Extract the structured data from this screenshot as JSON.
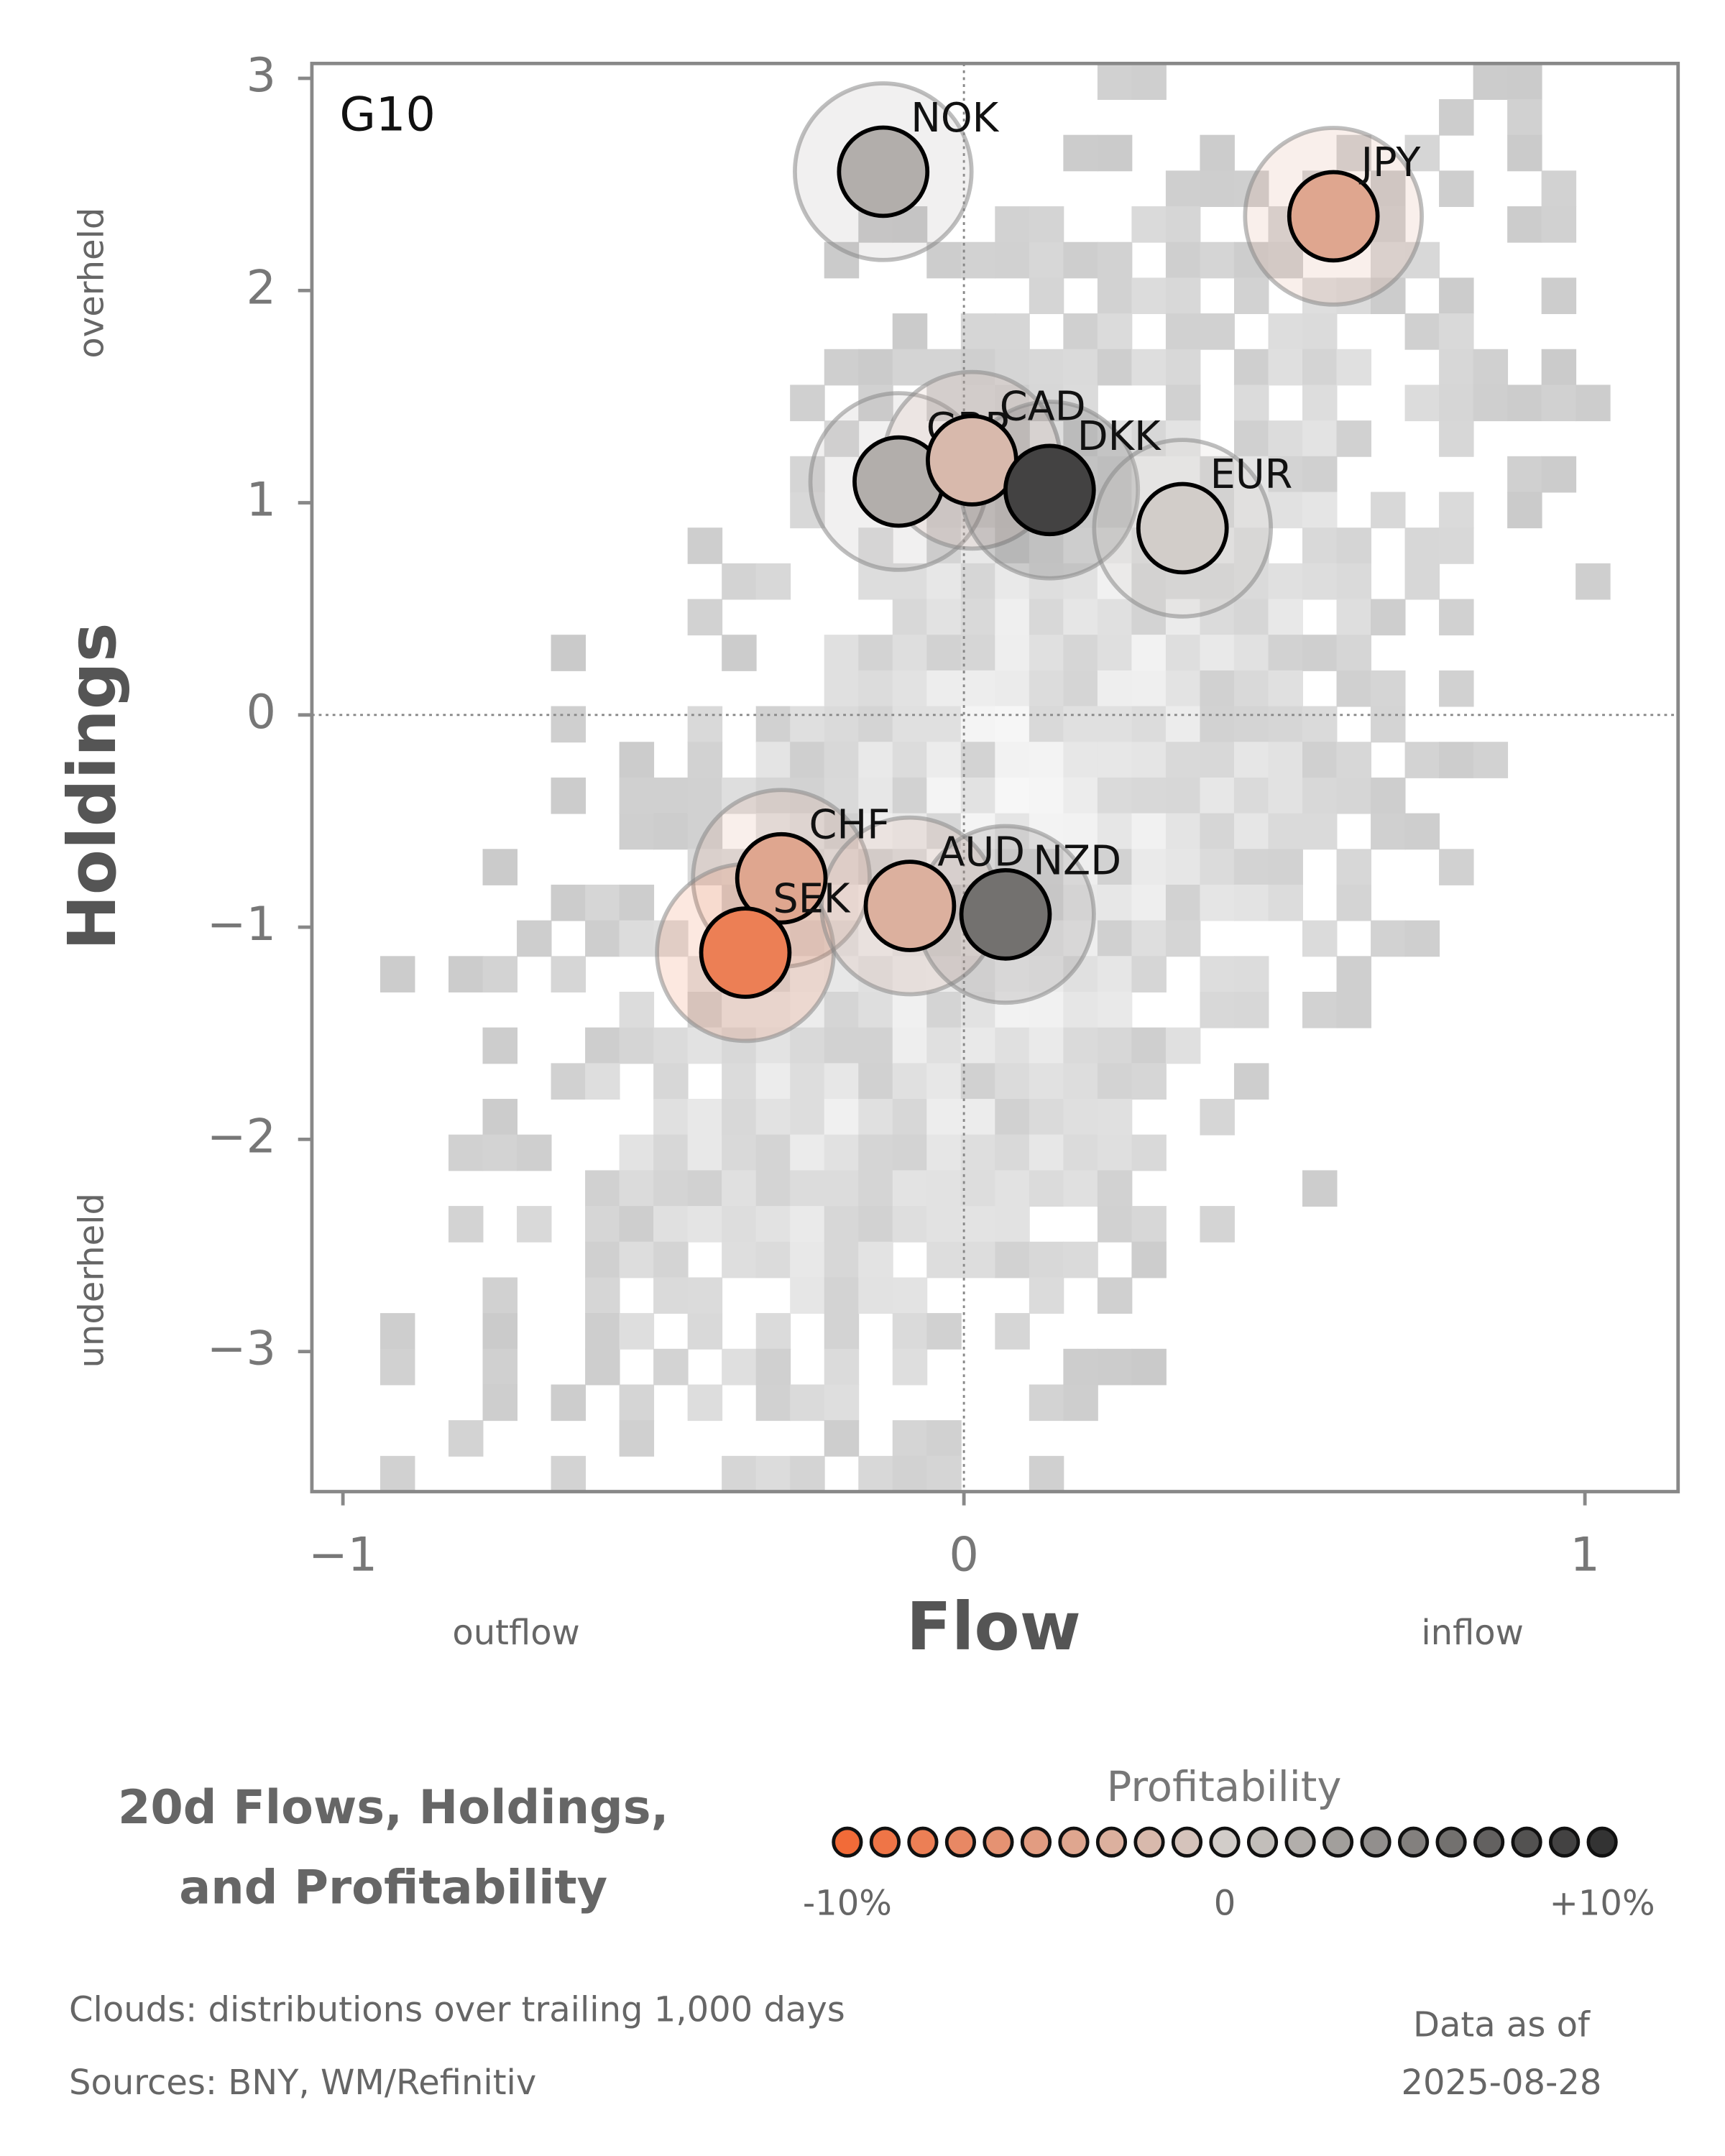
{
  "chart_data": {
    "type": "scatter",
    "panel_label": "G10",
    "x_label": "Flow",
    "y_label": "Holdings",
    "x_low_label": "outflow",
    "x_high_label": "inflow",
    "y_high_label": "overheld",
    "y_low_label": "underheld",
    "xlim": [
      -1.05,
      1.15
    ],
    "ylim": [
      -3.66,
      3.07
    ],
    "xticks": [
      {
        "value": -1,
        "label": "−1"
      },
      0,
      1
    ],
    "yticks": [
      {
        "value": -3,
        "label": "−3"
      },
      {
        "value": -2,
        "label": "−2"
      },
      {
        "value": -1,
        "label": "−1"
      },
      0,
      1,
      2,
      3
    ],
    "zero_lines": true,
    "points": [
      {
        "label": "NOK",
        "x": -0.13,
        "y": 2.56,
        "profitability": 2
      },
      {
        "label": "JPY",
        "x": 0.595,
        "y": 2.35,
        "profitability": -4
      },
      {
        "label": "GBP",
        "x": -0.105,
        "y": 1.1,
        "profitability": 2
      },
      {
        "label": "CAD",
        "x": 0.013,
        "y": 1.2,
        "profitability": -2
      },
      {
        "label": "DKK",
        "x": 0.138,
        "y": 1.06,
        "profitability": 9
      },
      {
        "label": "EUR",
        "x": 0.352,
        "y": 0.88,
        "profitability": 0
      },
      {
        "label": "CHF",
        "x": -0.294,
        "y": -0.77,
        "profitability": -4
      },
      {
        "label": "SEK",
        "x": -0.352,
        "y": -1.12,
        "profitability": -8
      },
      {
        "label": "AUD",
        "x": -0.087,
        "y": -0.9,
        "profitability": -3
      },
      {
        "label": "NZD",
        "x": 0.067,
        "y": -0.94,
        "profitability": 6
      }
    ],
    "title": [
      "20d Flows, Holdings,",
      "and Profitability"
    ],
    "colorbar": {
      "title": "Profitability",
      "clim": [
        -10,
        10
      ],
      "colors": [
        "#f26b38",
        "#d2cdc9",
        "#333333"
      ],
      "ticks": [
        {
          "value": -10,
          "label": "-10%"
        },
        0,
        {
          "value": 10,
          "label": "+10%"
        }
      ]
    },
    "footnotes": [
      "Clouds:  distributions over trailing 1,000 days",
      "Sources:  BNY, WM/Refinitiv"
    ],
    "date_note": [
      "Data as of",
      "2025-08-28"
    ]
  }
}
